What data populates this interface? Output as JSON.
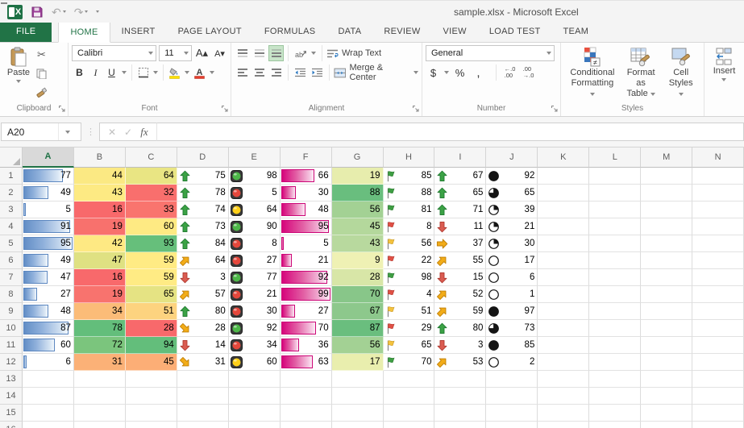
{
  "window": {
    "title": "sample.xlsx - Microsoft Excel"
  },
  "quick_access": {
    "buttons": [
      "excel-logo",
      "save",
      "undo",
      "redo",
      "customize-quick-access"
    ],
    "undo_glyph": "↶",
    "redo_glyph": "↷"
  },
  "ribbon": {
    "tabs": [
      {
        "label": "FILE",
        "id": "file",
        "active": false
      },
      {
        "label": "HOME",
        "id": "home",
        "active": true
      },
      {
        "label": "INSERT",
        "id": "insert",
        "active": false
      },
      {
        "label": "PAGE LAYOUT",
        "id": "page-layout",
        "active": false
      },
      {
        "label": "FORMULAS",
        "id": "formulas",
        "active": false
      },
      {
        "label": "DATA",
        "id": "data",
        "active": false
      },
      {
        "label": "REVIEW",
        "id": "review",
        "active": false
      },
      {
        "label": "VIEW",
        "id": "view",
        "active": false
      },
      {
        "label": "LOAD TEST",
        "id": "load-test",
        "active": false
      },
      {
        "label": "TEAM",
        "id": "team",
        "active": false
      }
    ],
    "clipboard": {
      "paste_label": "Paste",
      "label": "Clipboard"
    },
    "font": {
      "font_name": "Calibri",
      "font_size": "11",
      "bold": "B",
      "italic": "I",
      "underline": "U",
      "label": "Font"
    },
    "alignment": {
      "wrap_text": "Wrap Text",
      "merge_center": "Merge & Center",
      "orientation": "ab",
      "label": "Alignment",
      "active_toggle": "bottom-align"
    },
    "number": {
      "format": "General",
      "currency": "$",
      "percent": "%",
      "comma": ",",
      "inc_decimal_top": "←.0",
      "inc_decimal_bottom": ".00",
      "dec_decimal_top": ".00",
      "dec_decimal_bottom": "→.0",
      "label": "Number"
    },
    "styles": {
      "buttons": [
        {
          "line1": "Conditional",
          "line2": "Formatting"
        },
        {
          "line1": "Format as",
          "line2": "Table"
        },
        {
          "line1": "Cell",
          "line2": "Styles"
        }
      ],
      "label": "Styles"
    },
    "insert_label": "Insert"
  },
  "formula_bar": {
    "name_box": "A20",
    "fx": "fx",
    "cancel_glyph": "✕",
    "enter_glyph": "✓",
    "formula": ""
  },
  "colors": {
    "excel_green": "#217346",
    "databar_blue": "#638EC6",
    "databar_pink": "#D6047B",
    "arrow_green": "#3BA245",
    "arrow_yellow": "#F2AC18",
    "arrow_red": "#DA5C51",
    "light_green": "#4DB748",
    "light_yellow": "#FFD019",
    "light_red": "#E5473B",
    "flag_green": "#3E9E43",
    "flag_yellow": "#F4C23D",
    "flag_red": "#E05045",
    "scale_red": "#F8696B",
    "scale_yellow": "#FFEB84",
    "scale_green": "#63BE7B"
  },
  "icons": {
    "cell_icon_sets": [
      "block-arrow (up / diag-up / right / diag-down / down)",
      "traffic-light-rimmed (green / yellow / red)",
      "flag (green / yellow / red)",
      "quarter-pie (empty / quarter / three-quarter / full)"
    ]
  },
  "sheet": {
    "column_headers": [
      "A",
      "B",
      "C",
      "D",
      "E",
      "F",
      "G",
      "H",
      "I",
      "J",
      "K",
      "L",
      "M",
      "N"
    ],
    "selected_column": "A",
    "visible_row_count": 16,
    "columns": {
      "A": {
        "format": "databar-blue",
        "bar_max": 95,
        "cells": [
          77,
          49,
          5,
          91,
          95,
          49,
          47,
          27,
          48,
          87,
          60,
          6
        ]
      },
      "B": {
        "format": "color-scale",
        "cells": [
          {
            "v": 44,
            "bg": "#FBE983"
          },
          {
            "v": 43,
            "bg": "#FDEA83"
          },
          {
            "v": 16,
            "bg": "#F8696B"
          },
          {
            "v": 19,
            "bg": "#F8716D"
          },
          {
            "v": 42,
            "bg": "#FEE983"
          },
          {
            "v": 47,
            "bg": "#DFE182"
          },
          {
            "v": 16,
            "bg": "#F8696B"
          },
          {
            "v": 19,
            "bg": "#F8736E"
          },
          {
            "v": 34,
            "bg": "#FBBC78"
          },
          {
            "v": 78,
            "bg": "#63BE7B"
          },
          {
            "v": 72,
            "bg": "#7BC57D"
          },
          {
            "v": 31,
            "bg": "#FBB177"
          }
        ]
      },
      "C": {
        "format": "color-scale",
        "cells": [
          {
            "v": 64,
            "bg": "#E9E583"
          },
          {
            "v": 32,
            "bg": "#F96F6D"
          },
          {
            "v": 33,
            "bg": "#F9746E"
          },
          {
            "v": 60,
            "bg": "#FEEA83"
          },
          {
            "v": 93,
            "bg": "#66BF7B"
          },
          {
            "v": 59,
            "bg": "#FFEB84"
          },
          {
            "v": 59,
            "bg": "#FFEB84"
          },
          {
            "v": 65,
            "bg": "#E5E383"
          },
          {
            "v": 51,
            "bg": "#FDD37F"
          },
          {
            "v": 28,
            "bg": "#F8696B"
          },
          {
            "v": 94,
            "bg": "#63BE7B"
          },
          {
            "v": 45,
            "bg": "#FCAE76"
          }
        ]
      },
      "D": {
        "format": "icon-arrows",
        "cells": [
          {
            "v": 75,
            "icon": "up"
          },
          {
            "v": 78,
            "icon": "up"
          },
          {
            "v": 74,
            "icon": "up"
          },
          {
            "v": 73,
            "icon": "up"
          },
          {
            "v": 84,
            "icon": "up"
          },
          {
            "v": 64,
            "icon": "diag-up"
          },
          {
            "v": 3,
            "icon": "down"
          },
          {
            "v": 57,
            "icon": "diag-up"
          },
          {
            "v": 80,
            "icon": "up"
          },
          {
            "v": 28,
            "icon": "diag-down"
          },
          {
            "v": 14,
            "icon": "down"
          },
          {
            "v": 31,
            "icon": "diag-down"
          }
        ]
      },
      "E": {
        "format": "icon-traffic-light",
        "cells": [
          {
            "v": 98,
            "icon": "green"
          },
          {
            "v": 5,
            "icon": "red"
          },
          {
            "v": 64,
            "icon": "yellow"
          },
          {
            "v": 90,
            "icon": "green"
          },
          {
            "v": 8,
            "icon": "red"
          },
          {
            "v": 27,
            "icon": "red"
          },
          {
            "v": 77,
            "icon": "green"
          },
          {
            "v": 21,
            "icon": "red"
          },
          {
            "v": 30,
            "icon": "red"
          },
          {
            "v": 92,
            "icon": "green"
          },
          {
            "v": 34,
            "icon": "red"
          },
          {
            "v": 60,
            "icon": "yellow"
          }
        ]
      },
      "F": {
        "format": "databar-pink",
        "bar_max": 99,
        "cells": [
          66,
          30,
          48,
          95,
          5,
          21,
          92,
          99,
          27,
          70,
          36,
          63
        ]
      },
      "G": {
        "format": "color-scale",
        "cells": [
          {
            "v": 19,
            "bg": "#E7EDAD"
          },
          {
            "v": 88,
            "bg": "#69BE7E"
          },
          {
            "v": 56,
            "bg": "#A3D194"
          },
          {
            "v": 45,
            "bg": "#B4D89C"
          },
          {
            "v": 43,
            "bg": "#B8D99E"
          },
          {
            "v": 9,
            "bg": "#EFF1B4"
          },
          {
            "v": 28,
            "bg": "#D8E6A7"
          },
          {
            "v": 70,
            "bg": "#88C689"
          },
          {
            "v": 67,
            "bg": "#8DC88C"
          },
          {
            "v": 87,
            "bg": "#6ABE7E"
          },
          {
            "v": 56,
            "bg": "#A3D194"
          },
          {
            "v": 17,
            "bg": "#E9EEAE"
          }
        ]
      },
      "H": {
        "format": "icon-flags",
        "cells": [
          {
            "v": 85,
            "icon": "green"
          },
          {
            "v": 88,
            "icon": "green"
          },
          {
            "v": 81,
            "icon": "green"
          },
          {
            "v": 8,
            "icon": "red"
          },
          {
            "v": 56,
            "icon": "yellow"
          },
          {
            "v": 22,
            "icon": "red"
          },
          {
            "v": 98,
            "icon": "green"
          },
          {
            "v": 4,
            "icon": "red"
          },
          {
            "v": 51,
            "icon": "yellow"
          },
          {
            "v": 29,
            "icon": "red"
          },
          {
            "v": 65,
            "icon": "yellow"
          },
          {
            "v": 70,
            "icon": "green"
          }
        ]
      },
      "I": {
        "format": "icon-arrows",
        "cells": [
          {
            "v": 67,
            "icon": "up"
          },
          {
            "v": 65,
            "icon": "up"
          },
          {
            "v": 71,
            "icon": "up"
          },
          {
            "v": 11,
            "icon": "down"
          },
          {
            "v": 37,
            "icon": "right"
          },
          {
            "v": 55,
            "icon": "diag-up"
          },
          {
            "v": 15,
            "icon": "down"
          },
          {
            "v": 52,
            "icon": "diag-up"
          },
          {
            "v": 59,
            "icon": "diag-up"
          },
          {
            "v": 80,
            "icon": "up"
          },
          {
            "v": 3,
            "icon": "down"
          },
          {
            "v": 53,
            "icon": "diag-up"
          }
        ]
      },
      "J": {
        "format": "icon-quarters",
        "cells": [
          {
            "v": 92,
            "icon": "full"
          },
          {
            "v": 65,
            "icon": "three-quarter"
          },
          {
            "v": 39,
            "icon": "quarter"
          },
          {
            "v": 21,
            "icon": "quarter"
          },
          {
            "v": 30,
            "icon": "quarter"
          },
          {
            "v": 17,
            "icon": "empty"
          },
          {
            "v": 6,
            "icon": "empty"
          },
          {
            "v": 1,
            "icon": "empty"
          },
          {
            "v": 97,
            "icon": "full"
          },
          {
            "v": 73,
            "icon": "three-quarter"
          },
          {
            "v": 85,
            "icon": "full"
          },
          {
            "v": 2,
            "icon": "empty"
          }
        ]
      }
    }
  }
}
